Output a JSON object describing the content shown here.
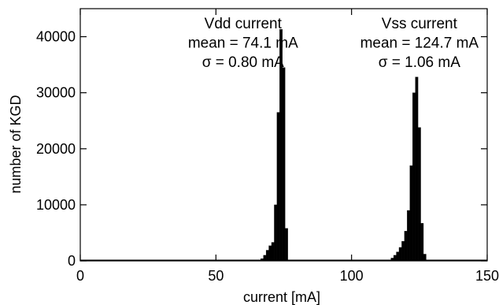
{
  "chart_data": {
    "type": "bar",
    "xlabel": "current [mA]",
    "ylabel": "number of KGD",
    "xlim": [
      0,
      150
    ],
    "ylim": [
      0,
      45000
    ],
    "xticks": [
      0,
      50,
      100,
      150
    ],
    "yticks": [
      0,
      10000,
      20000,
      30000,
      40000
    ],
    "bin_width": 1,
    "grid": false,
    "series": [
      {
        "bins": [
          {
            "x": 67,
            "y": 400
          },
          {
            "x": 68,
            "y": 1000
          },
          {
            "x": 69,
            "y": 1900
          },
          {
            "x": 70,
            "y": 2700
          },
          {
            "x": 71,
            "y": 3300
          },
          {
            "x": 72,
            "y": 10000
          },
          {
            "x": 73,
            "y": 26500
          },
          {
            "x": 74,
            "y": 41300
          },
          {
            "x": 75,
            "y": 34500
          },
          {
            "x": 76,
            "y": 5800
          }
        ]
      },
      {
        "bins": [
          {
            "x": 115,
            "y": 500
          },
          {
            "x": 116,
            "y": 1000
          },
          {
            "x": 117,
            "y": 1600
          },
          {
            "x": 118,
            "y": 2400
          },
          {
            "x": 119,
            "y": 3500
          },
          {
            "x": 120,
            "y": 5300
          },
          {
            "x": 121,
            "y": 9000
          },
          {
            "x": 122,
            "y": 17000
          },
          {
            "x": 123,
            "y": 30000
          },
          {
            "x": 124,
            "y": 32800
          },
          {
            "x": 125,
            "y": 23800
          },
          {
            "x": 126,
            "y": 6700
          },
          {
            "x": 127,
            "y": 1200
          }
        ]
      }
    ],
    "annotations": [
      {
        "lines": [
          "Vdd current",
          "mean = 74.1 mA",
          "σ = 0.80 mA"
        ],
        "x": 60,
        "y": 41500
      },
      {
        "lines": [
          "Vss current",
          "mean = 124.7 mA",
          "σ = 1.06 mA"
        ],
        "x": 125,
        "y": 41500
      }
    ]
  }
}
